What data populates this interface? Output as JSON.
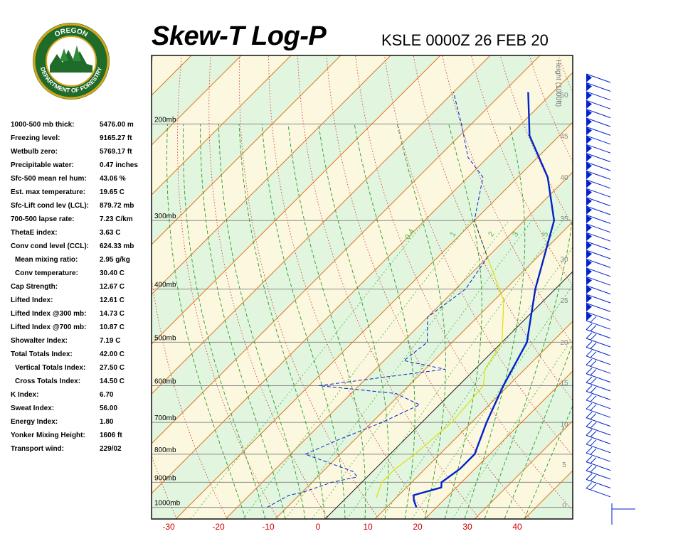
{
  "header": {
    "title": "Skew-T Log-P",
    "station_time": "KSLE 0000Z 26 FEB 20"
  },
  "logo": {
    "top_text": "OREGON",
    "bottom_text": "DEPARTMENT OF FORESTRY"
  },
  "indices": [
    {
      "label": "1000-500 mb thick:",
      "value": "5476.00 m",
      "indent": false
    },
    {
      "label": "Freezing level:",
      "value": "9165.27 ft",
      "indent": false
    },
    {
      "label": "Wetbulb zero:",
      "value": "5769.17 ft",
      "indent": false
    },
    {
      "label": "Precipitable water:",
      "value": "0.47 inches",
      "indent": false
    },
    {
      "label": "Sfc-500 mean rel hum:",
      "value": "43.06 %",
      "indent": false
    },
    {
      "label": "Est. max temperature:",
      "value": "19.65 C",
      "indent": false
    },
    {
      "label": "Sfc-Lift cond lev (LCL):",
      "value": "879.72 mb",
      "indent": false
    },
    {
      "label": "700-500 lapse rate:",
      "value": "7.23 C/km",
      "indent": false
    },
    {
      "label": "ThetaE index:",
      "value": "3.63 C",
      "indent": false
    },
    {
      "label": "Conv cond level (CCL):",
      "value": "624.33 mb",
      "indent": false
    },
    {
      "label": "Mean mixing ratio:",
      "value": "2.95 g/kg",
      "indent": true
    },
    {
      "label": "Conv temperature:",
      "value": "30.40 C",
      "indent": true
    },
    {
      "label": "Cap Strength:",
      "value": "12.67 C",
      "indent": false
    },
    {
      "label": "Lifted Index:",
      "value": "12.61 C",
      "indent": false
    },
    {
      "label": "Lifted Index @300 mb:",
      "value": "14.73 C",
      "indent": false
    },
    {
      "label": "Lifted Index @700 mb:",
      "value": "10.87 C",
      "indent": false
    },
    {
      "label": "Showalter Index:",
      "value": "7.19 C",
      "indent": false
    },
    {
      "label": "Total Totals Index:",
      "value": "42.00 C",
      "indent": false
    },
    {
      "label": "Vertical Totals Index:",
      "value": "27.50 C",
      "indent": true
    },
    {
      "label": "Cross Totals Index:",
      "value": "14.50 C",
      "indent": true
    },
    {
      "label": "K Index:",
      "value": "6.70",
      "indent": false
    },
    {
      "label": "Sweat Index:",
      "value": "56.00",
      "indent": false
    },
    {
      "label": "Energy Index:",
      "value": "1.80",
      "indent": false
    },
    {
      "label": "Yonker Mixing Height:",
      "value": "1606 ft",
      "indent": false
    },
    {
      "label": "Transport wind:",
      "value": "229/02",
      "indent": false
    }
  ],
  "colors": {
    "temperature": "#0022cc",
    "dewpoint": "#0022cc",
    "parcel": "#e0e000",
    "isotherm": "#e07820",
    "dry_adiabat": "#d84040",
    "moist_adiabat": "#2a9a2a",
    "mixing_ratio": "#55bb55",
    "band_green": "#e2f5de",
    "band_yellow": "#fbf8df",
    "axis_label_red": "#cc0000"
  },
  "chart_data": {
    "type": "line",
    "title": "Skew-T Log-P",
    "xlabel": "",
    "ylabel": "",
    "x_tick_labels": [
      "-30",
      "-20",
      "-10",
      "0",
      "10",
      "20",
      "30",
      "40"
    ],
    "pressure_labels": [
      "200mb",
      "300mb",
      "400mb",
      "500mb",
      "600mb",
      "700mb",
      "800mb",
      "900mb",
      "1000mb"
    ],
    "height_axis_label": "Height (1000ft)",
    "height_tick_labels": [
      "50",
      "45",
      "40",
      "35",
      "30",
      "25",
      "20",
      "15",
      "10",
      "5",
      "0"
    ],
    "mixing_ratio_labels": [
      "0.4",
      "1",
      "2",
      "3",
      "5"
    ],
    "series": [
      {
        "role": "temperature",
        "points": [
          [
            16,
            1000
          ],
          [
            14,
            970
          ],
          [
            13,
            950
          ],
          [
            17,
            920
          ],
          [
            16,
            900
          ],
          [
            17,
            850
          ],
          [
            17,
            800
          ],
          [
            13,
            700
          ],
          [
            9,
            600
          ],
          [
            5,
            500
          ],
          [
            -4,
            400
          ],
          [
            -14,
            300
          ],
          [
            -24,
            250
          ],
          [
            -36,
            210
          ],
          [
            -45,
            175
          ]
        ]
      },
      {
        "role": "dewpoint",
        "points": [
          [
            -14,
            1000
          ],
          [
            -12,
            950
          ],
          [
            -10,
            940
          ],
          [
            -6,
            900
          ],
          [
            -2,
            880
          ],
          [
            -4,
            860
          ],
          [
            -17,
            800
          ],
          [
            -13,
            750
          ],
          [
            -8,
            700
          ],
          [
            -4,
            650
          ],
          [
            -11,
            620
          ],
          [
            -28,
            600
          ],
          [
            -6,
            560
          ],
          [
            -16,
            540
          ],
          [
            -15,
            500
          ],
          [
            -20,
            450
          ],
          [
            -18,
            400
          ],
          [
            -20,
            350
          ],
          [
            -30,
            300
          ],
          [
            -37,
            250
          ],
          [
            -44,
            230
          ],
          [
            -52,
            200
          ],
          [
            -60,
            175
          ]
        ]
      },
      {
        "role": "parcel",
        "points": [
          [
            6,
            960
          ],
          [
            4,
            900
          ],
          [
            4,
            850
          ],
          [
            5,
            800
          ],
          [
            6,
            700
          ],
          [
            5,
            600
          ],
          [
            2,
            560
          ],
          [
            0,
            500
          ],
          [
            -8,
            420
          ],
          [
            -20,
            350
          ],
          [
            -30,
            300
          ]
        ]
      }
    ],
    "wind_barbs": "plotted alongside the right edge from surface to about 150 mb"
  }
}
